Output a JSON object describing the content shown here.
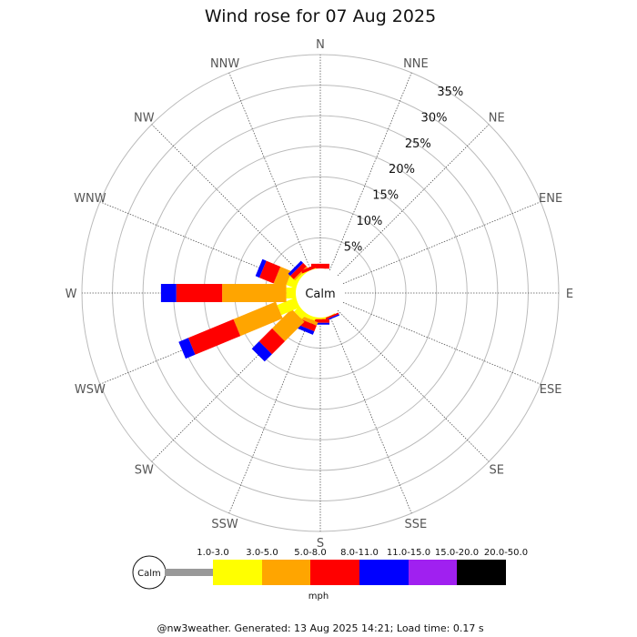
{
  "chart_data": {
    "type": "windrose",
    "title": "Wind rose for 07 Aug 2025",
    "directions": [
      "N",
      "NNE",
      "NE",
      "ENE",
      "E",
      "ESE",
      "SE",
      "SSE",
      "S",
      "SSW",
      "SW",
      "WSW",
      "W",
      "WNW",
      "NW",
      "NNW"
    ],
    "radial_ticks": [
      "5%",
      "10%",
      "15%",
      "20%",
      "25%",
      "30%",
      "35%"
    ],
    "radial_max": 35,
    "calm_label": "Calm",
    "units": "mph",
    "bins": [
      {
        "label": "1.0-3.0",
        "color": "#999999"
      },
      {
        "label": "3.0-5.0",
        "color": "#ffff00"
      },
      {
        "label": "5.0-8.0",
        "color": "#ffa500"
      },
      {
        "label": "8.0-11.0",
        "color": "#ff0000"
      },
      {
        "label": "11.0-15.0",
        "color": "#0000ff"
      },
      {
        "label": "15.0-20.0",
        "color": "#a020f0"
      },
      {
        "label": "20.0-50.0",
        "color": "#000000"
      }
    ],
    "series": [
      {
        "direction": "N",
        "values": [
          0.3,
          0.4,
          0,
          0.8,
          0,
          0,
          0
        ]
      },
      {
        "direction": "NNE",
        "values": [
          0,
          0,
          0,
          0,
          0,
          0,
          0
        ]
      },
      {
        "direction": "NE",
        "values": [
          0,
          0,
          0,
          0,
          0,
          0,
          0
        ]
      },
      {
        "direction": "ENE",
        "values": [
          0,
          0,
          0,
          0,
          0,
          0,
          0
        ]
      },
      {
        "direction": "E",
        "values": [
          0,
          0,
          0,
          0,
          0,
          0,
          0
        ]
      },
      {
        "direction": "ESE",
        "values": [
          0,
          0,
          0,
          0,
          0,
          0,
          0
        ]
      },
      {
        "direction": "SE",
        "values": [
          0,
          0,
          0,
          0,
          0,
          0,
          0
        ]
      },
      {
        "direction": "SSE",
        "values": [
          0.3,
          0.5,
          0,
          0.3,
          0.2,
          0,
          0
        ]
      },
      {
        "direction": "S",
        "values": [
          0.3,
          0.7,
          0,
          0.6,
          0.3,
          0,
          0
        ]
      },
      {
        "direction": "SSW",
        "values": [
          0.3,
          1.0,
          0.6,
          1.0,
          0.6,
          0,
          0
        ]
      },
      {
        "direction": "SW",
        "values": [
          0.4,
          1.5,
          4.5,
          3.0,
          1.7,
          0,
          0
        ]
      },
      {
        "direction": "WSW",
        "values": [
          0.5,
          3.5,
          7.5,
          8.0,
          1.7,
          0,
          0
        ]
      },
      {
        "direction": "W",
        "values": [
          0.5,
          1.8,
          10.5,
          7.5,
          2.5,
          0,
          0
        ]
      },
      {
        "direction": "WNW",
        "values": [
          0.4,
          2.0,
          2.0,
          2.5,
          0.7,
          0,
          0
        ]
      },
      {
        "direction": "NW",
        "values": [
          0.3,
          0.8,
          0.3,
          0.8,
          0.5,
          0,
          0
        ]
      },
      {
        "direction": "NNW",
        "values": [
          0.3,
          0.5,
          0,
          0.5,
          0,
          0,
          0
        ]
      }
    ]
  },
  "footer": "@nw3weather. Generated: 13 Aug 2025 14:21; Load time: 0.17 s"
}
